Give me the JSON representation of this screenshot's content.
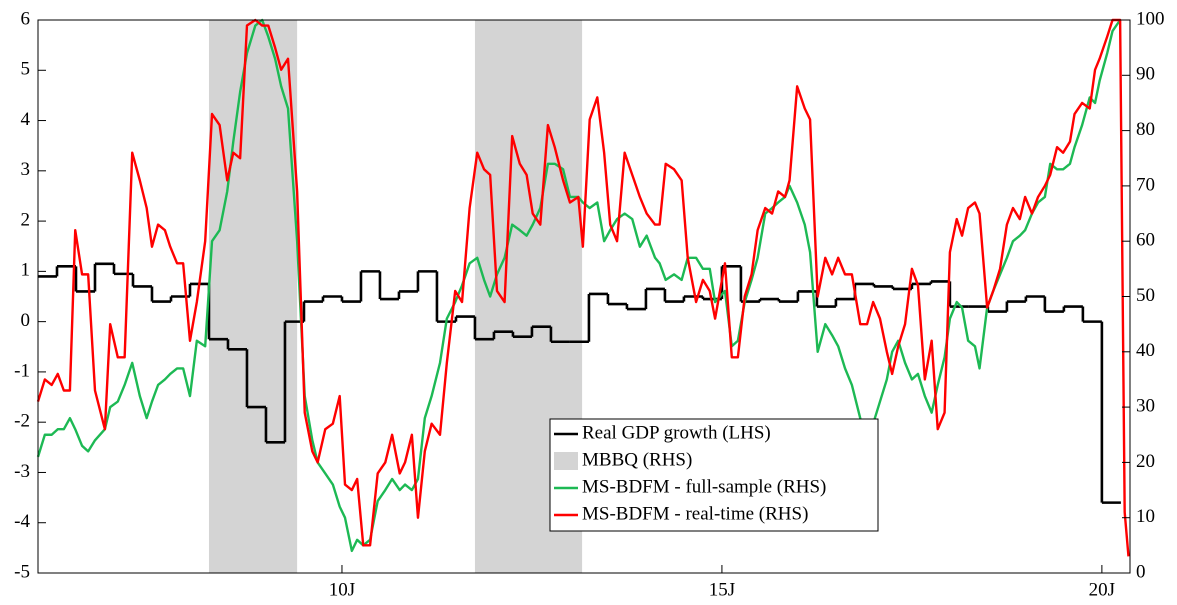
{
  "chart_data": {
    "type": "line",
    "xlim": [
      6.0,
      20.37
    ],
    "xticks": [
      {
        "value": 10,
        "label": "10J"
      },
      {
        "value": 15,
        "label": "15J"
      },
      {
        "value": 20,
        "label": "20J"
      }
    ],
    "ylim": [
      -5,
      6
    ],
    "yticks": [
      -5,
      -4,
      -3,
      -2,
      -1,
      0,
      1,
      2,
      3,
      4,
      5,
      6
    ],
    "y2lim": [
      0,
      100
    ],
    "y2ticks": [
      0,
      10,
      20,
      30,
      40,
      50,
      60,
      70,
      80,
      90,
      100
    ],
    "grid": false,
    "legend": "lower center",
    "x": [
      6.0,
      6.09,
      6.18,
      6.26,
      6.34,
      6.42,
      6.49,
      6.58,
      6.66,
      6.75,
      6.88,
      6.95,
      7.05,
      7.14,
      7.24,
      7.34,
      7.43,
      7.5,
      7.58,
      7.67,
      7.74,
      7.83,
      7.91,
      8.0,
      8.09,
      8.2,
      8.29,
      8.39,
      8.49,
      8.57,
      8.66,
      8.75,
      8.86,
      8.95,
      9.03,
      9.12,
      9.2,
      9.29,
      9.41,
      9.51,
      9.61,
      9.68,
      9.78,
      9.88,
      9.97,
      10.04,
      10.13,
      10.2,
      10.28,
      10.37,
      10.47,
      10.57,
      10.66,
      10.76,
      10.83,
      10.92,
      11.0,
      11.09,
      11.18,
      11.29,
      11.38,
      11.49,
      11.58,
      11.68,
      11.78,
      11.87,
      11.95,
      12.04,
      12.14,
      12.24,
      12.34,
      12.43,
      12.51,
      12.61,
      12.71,
      12.8,
      12.91,
      13.0,
      13.11,
      13.17,
      13.26,
      13.36,
      13.45,
      13.53,
      13.62,
      13.72,
      13.82,
      13.92,
      14.01,
      14.12,
      14.18,
      14.26,
      14.37,
      14.47,
      14.55,
      14.66,
      14.75,
      14.84,
      14.91,
      15.04,
      15.13,
      15.21,
      15.3,
      15.39,
      15.47,
      15.57,
      15.66,
      15.74,
      15.83,
      15.89,
      15.99,
      16.09,
      16.16,
      16.26,
      16.36,
      16.45,
      16.53,
      16.62,
      16.71,
      16.82,
      16.91,
      16.99,
      17.08,
      17.17,
      17.24,
      17.32,
      17.41,
      17.5,
      17.58,
      17.67,
      17.76,
      17.84,
      17.93,
      18.0,
      18.09,
      18.16,
      18.24,
      18.33,
      18.39,
      18.49,
      18.57,
      18.66,
      18.75,
      18.83,
      18.92,
      18.99,
      19.08,
      19.16,
      19.25,
      19.32,
      19.41,
      19.49,
      19.58,
      19.64,
      19.74,
      19.84,
      19.91,
      19.97,
      20.07,
      20.14,
      20.24,
      20.3,
      20.35
    ],
    "series": [
      {
        "name": "Real GDP growth (LHS)",
        "color": "#000000",
        "step": true,
        "x": [
          6.0,
          6.25,
          6.5,
          6.75,
          7.0,
          7.25,
          7.5,
          7.75,
          8.0,
          8.25,
          8.5,
          8.75,
          9.0,
          9.25,
          9.5,
          9.75,
          10.0,
          10.25,
          10.5,
          10.75,
          11.0,
          11.25,
          11.5,
          11.75,
          12.0,
          12.25,
          12.5,
          12.75,
          13.0,
          13.25,
          13.5,
          13.75,
          14.0,
          14.25,
          14.5,
          14.75,
          15.0,
          15.25,
          15.5,
          15.75,
          16.0,
          16.25,
          16.5,
          16.75,
          17.0,
          17.25,
          17.5,
          17.75,
          18.0,
          18.25,
          18.5,
          18.75,
          19.0,
          19.25,
          19.5,
          19.75,
          20.0
        ],
        "values": [
          0.9,
          1.1,
          0.6,
          1.15,
          0.95,
          0.7,
          0.4,
          0.5,
          0.75,
          -0.35,
          -0.55,
          -1.7,
          -2.4,
          0.0,
          0.4,
          0.5,
          0.4,
          1.0,
          0.45,
          0.6,
          1.0,
          0.0,
          0.1,
          -0.35,
          -0.2,
          -0.3,
          -0.1,
          -0.4,
          -0.4,
          0.55,
          0.35,
          0.25,
          0.65,
          0.4,
          0.5,
          0.45,
          1.1,
          0.4,
          0.45,
          0.4,
          0.6,
          0.3,
          0.45,
          0.75,
          0.7,
          0.65,
          0.75,
          0.8,
          0.3,
          0.3,
          0.2,
          0.4,
          0.5,
          0.2,
          0.3,
          0.0,
          -3.6
        ]
      },
      {
        "name": "MBBQ (RHS)",
        "color": "#d4d4d4",
        "axis": "y2",
        "regions": [
          [
            8.25,
            9.41
          ],
          [
            11.75,
            13.16
          ]
        ]
      },
      {
        "name": "MS-BDFM - full-sample (RHS)",
        "color": "#1db954",
        "axis": "y2",
        "values": [
          21,
          25,
          25,
          26,
          26,
          28,
          26,
          23,
          22,
          24,
          26,
          30,
          31,
          34,
          38,
          32,
          28,
          31,
          34,
          35,
          36,
          37,
          37,
          32,
          42,
          41,
          60,
          62,
          69,
          78,
          87,
          94,
          99,
          100,
          97,
          93,
          88,
          84,
          60,
          32,
          24,
          20,
          18,
          16,
          12,
          10,
          4,
          6,
          5,
          6,
          13,
          15,
          17,
          15,
          16,
          15,
          17,
          28,
          32,
          38,
          46,
          49,
          52,
          56,
          57,
          53,
          50,
          54,
          57,
          63,
          62,
          61,
          63,
          66,
          74,
          74,
          73,
          68,
          68,
          67,
          66,
          67,
          60,
          62,
          64,
          65,
          64,
          59,
          61,
          57,
          56,
          53,
          54,
          53,
          57,
          57,
          55,
          55,
          49,
          51,
          41,
          42,
          49,
          53,
          57,
          65,
          66,
          67,
          68,
          70,
          67,
          63,
          58,
          40,
          45,
          43,
          41,
          37,
          34,
          28,
          20,
          27,
          31,
          35,
          40,
          42,
          38,
          35,
          36,
          32,
          29,
          34,
          39,
          46,
          49,
          48,
          42,
          41,
          37,
          48,
          51,
          54,
          57,
          60,
          61,
          62,
          65,
          67,
          68,
          74,
          73,
          73,
          74,
          77,
          81,
          86,
          85,
          89,
          94,
          98,
          100,
          null,
          null
        ]
      },
      {
        "name": "MS-BDFM - real-time (RHS)",
        "color": "#ff0000",
        "axis": "y2",
        "values": [
          31,
          35,
          34,
          36,
          33,
          33,
          62,
          54,
          54,
          33,
          26,
          45,
          39,
          39,
          76,
          71,
          66,
          59,
          63,
          62,
          59,
          56,
          56,
          42,
          49,
          60,
          83,
          81,
          71,
          76,
          75,
          99,
          100,
          99,
          99,
          95,
          91,
          93,
          69,
          29,
          22,
          20,
          26,
          27,
          32,
          16,
          15,
          17,
          5,
          5,
          18,
          20,
          25,
          18,
          20,
          25,
          10,
          22,
          27,
          25,
          38,
          51,
          49,
          66,
          76,
          73,
          72,
          51,
          49,
          79,
          74,
          72,
          65,
          63,
          81,
          77,
          71,
          67,
          68,
          59,
          82,
          86,
          76,
          63,
          60,
          76,
          72,
          68,
          65,
          63,
          63,
          74,
          73,
          71,
          57,
          49,
          53,
          51,
          46,
          56,
          39,
          39,
          50,
          54,
          62,
          66,
          65,
          69,
          68,
          71,
          88,
          84,
          82,
          50,
          57,
          54,
          57,
          54,
          54,
          45,
          45,
          49,
          46,
          40,
          36,
          41,
          45,
          55,
          52,
          35,
          42,
          26,
          29,
          58,
          64,
          61,
          66,
          67,
          65,
          48,
          51,
          55,
          63,
          66,
          64,
          68,
          65,
          68,
          70,
          72,
          77,
          76,
          78,
          83,
          85,
          84,
          91,
          93,
          97,
          100,
          100,
          11,
          3
        ]
      }
    ]
  }
}
